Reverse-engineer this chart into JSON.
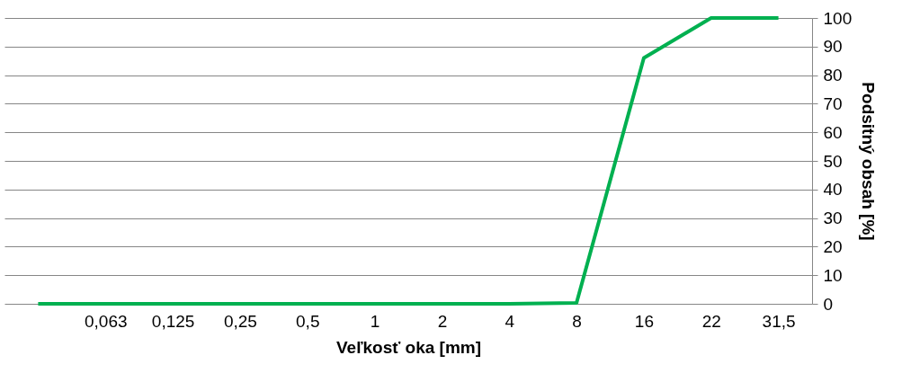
{
  "chart_data": {
    "type": "line",
    "categories": [
      null,
      "0,063",
      "0,125",
      "0,25",
      "0,5",
      "1",
      "2",
      "4",
      "8",
      "16",
      "22",
      "31,5"
    ],
    "series": [
      {
        "color": "#00b050",
        "values": [
          0,
          0,
          0,
          0,
          0,
          0,
          0,
          0,
          0.3,
          86,
          100,
          100
        ]
      }
    ],
    "xlabel": "Veľkosť oka [mm]",
    "ylabel": "Podsitný obsah [%]",
    "ylim": [
      0,
      100
    ],
    "yticks": [
      0,
      10,
      20,
      30,
      40,
      50,
      60,
      70,
      80,
      90,
      100
    ],
    "grid": "y",
    "marker": "none",
    "line_style": "solid"
  }
}
